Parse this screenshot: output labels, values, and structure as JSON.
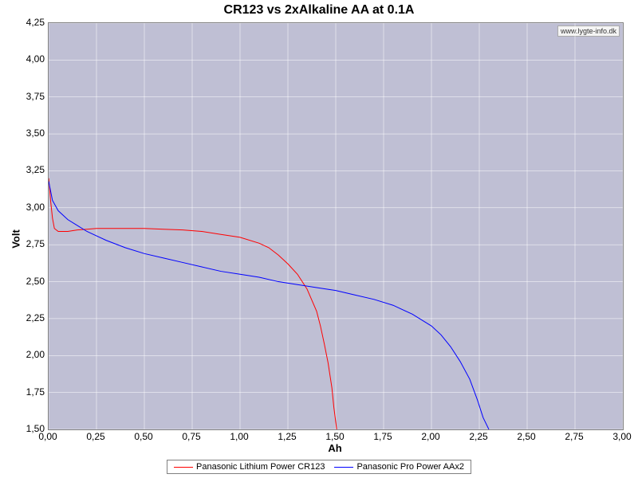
{
  "chart": {
    "type": "line",
    "title": "CR123 vs 2xAlkaline AA at 0.1A",
    "watermark": "www.lygte-info.dk",
    "xlabel": "Ah",
    "ylabel": "Volt",
    "background_color": "#ffffff",
    "plot_background_color": "#bfbfd4",
    "grid_color": "#ffffff",
    "border_color": "#808080",
    "title_fontsize": 16,
    "label_fontsize": 13,
    "tick_fontsize": 12,
    "xlim": [
      0.0,
      3.0
    ],
    "ylim": [
      1.5,
      4.25
    ],
    "xtick_step": 0.25,
    "ytick_step": 0.25,
    "xticks": [
      "0,00",
      "0,25",
      "0,50",
      "0,75",
      "1,00",
      "1,25",
      "1,50",
      "1,75",
      "2,00",
      "2,25",
      "2,50",
      "2,75",
      "3,00"
    ],
    "yticks": [
      "1,50",
      "1,75",
      "2,00",
      "2,25",
      "2,50",
      "2,75",
      "3,00",
      "3,25",
      "3,50",
      "3,75",
      "4,00",
      "4,25"
    ],
    "legend_position": "bottom",
    "series": [
      {
        "name": "Panasonic Lithium Power CR123",
        "color": "#ff0000",
        "line_width": 1,
        "x": [
          0.0,
          0.01,
          0.02,
          0.03,
          0.05,
          0.1,
          0.15,
          0.2,
          0.25,
          0.3,
          0.4,
          0.5,
          0.6,
          0.7,
          0.8,
          0.9,
          1.0,
          1.1,
          1.15,
          1.2,
          1.25,
          1.3,
          1.35,
          1.4,
          1.42,
          1.44,
          1.46,
          1.48,
          1.49,
          1.5,
          1.505
        ],
        "y": [
          3.2,
          3.05,
          2.93,
          2.86,
          2.84,
          2.84,
          2.85,
          2.855,
          2.86,
          2.86,
          2.86,
          2.86,
          2.855,
          2.85,
          2.84,
          2.82,
          2.8,
          2.76,
          2.73,
          2.68,
          2.62,
          2.55,
          2.45,
          2.3,
          2.2,
          2.08,
          1.95,
          1.78,
          1.65,
          1.55,
          1.5
        ]
      },
      {
        "name": "Panasonic Pro Power AAx2",
        "color": "#0000ff",
        "line_width": 1,
        "x": [
          0.0,
          0.02,
          0.05,
          0.1,
          0.15,
          0.2,
          0.3,
          0.4,
          0.5,
          0.6,
          0.7,
          0.8,
          0.9,
          1.0,
          1.1,
          1.2,
          1.3,
          1.4,
          1.5,
          1.6,
          1.7,
          1.8,
          1.9,
          2.0,
          2.05,
          2.1,
          2.15,
          2.2,
          2.24,
          2.27,
          2.3
        ],
        "y": [
          3.18,
          3.05,
          2.98,
          2.92,
          2.88,
          2.84,
          2.78,
          2.73,
          2.69,
          2.66,
          2.63,
          2.6,
          2.57,
          2.55,
          2.53,
          2.5,
          2.48,
          2.46,
          2.44,
          2.41,
          2.38,
          2.34,
          2.28,
          2.2,
          2.14,
          2.06,
          1.96,
          1.84,
          1.7,
          1.58,
          1.5
        ]
      }
    ]
  }
}
